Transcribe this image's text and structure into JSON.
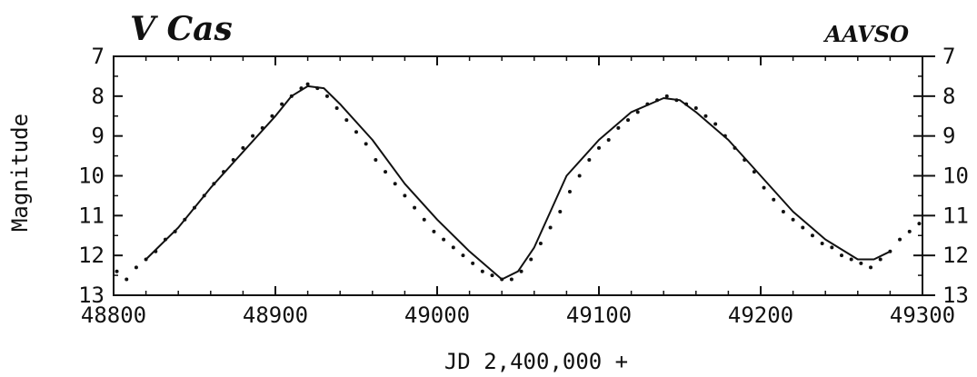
{
  "chart_data": {
    "type": "scatter",
    "title": "V Cas",
    "source_label": "AAVSO",
    "xlabel": "JD 2,400,000 +",
    "ylabel": "Magnitude",
    "xlim": [
      48800,
      49300
    ],
    "ylim": [
      13,
      7
    ],
    "y_inverted": true,
    "grid": false,
    "x_ticks": [
      48800,
      48900,
      49000,
      49100,
      49200,
      49300
    ],
    "y_ticks": [
      7,
      8,
      9,
      10,
      11,
      12,
      13
    ],
    "series": [
      {
        "kind": "points",
        "x": [
          48802,
          48808,
          48814,
          48820,
          48826,
          48832,
          48838,
          48844,
          48850,
          48856,
          48862,
          48868,
          48874,
          48880,
          48886,
          48892,
          48898,
          48904,
          48910,
          48916,
          48920,
          48926,
          48932,
          48938,
          48944,
          48950,
          48956,
          48962,
          48968,
          48974,
          48980,
          48986,
          48992,
          48998,
          49004,
          49010,
          49016,
          49022,
          49028,
          49034,
          49040,
          49046,
          49052,
          49058,
          49064,
          49070,
          49076,
          49082,
          49088,
          49094,
          49100,
          49106,
          49112,
          49118,
          49124,
          49130,
          49136,
          49142,
          49148,
          49154,
          49160,
          49166,
          49172,
          49178,
          49184,
          49190,
          49196,
          49202,
          49208,
          49214,
          49220,
          49226,
          49232,
          49238,
          49244,
          49250,
          49256,
          49262,
          49268,
          49274,
          49280,
          49286,
          49292,
          49298
        ],
        "y": [
          12.4,
          12.6,
          12.3,
          12.1,
          11.9,
          11.6,
          11.4,
          11.1,
          10.8,
          10.5,
          10.2,
          9.9,
          9.6,
          9.3,
          9.0,
          8.8,
          8.5,
          8.2,
          8.0,
          7.8,
          7.7,
          7.8,
          8.0,
          8.3,
          8.6,
          8.9,
          9.2,
          9.6,
          9.9,
          10.2,
          10.5,
          10.8,
          11.1,
          11.4,
          11.6,
          11.8,
          12.0,
          12.2,
          12.4,
          12.5,
          12.6,
          12.6,
          12.4,
          12.1,
          11.7,
          11.3,
          10.9,
          10.4,
          10.0,
          9.6,
          9.3,
          9.1,
          8.8,
          8.6,
          8.4,
          8.2,
          8.1,
          8.0,
          8.1,
          8.2,
          8.3,
          8.5,
          8.7,
          9.0,
          9.3,
          9.6,
          9.9,
          10.3,
          10.6,
          10.9,
          11.1,
          11.3,
          11.5,
          11.7,
          11.8,
          12.0,
          12.1,
          12.2,
          12.3,
          12.1,
          11.9,
          11.6,
          11.4,
          11.2
        ]
      },
      {
        "kind": "smoothed_curve",
        "x": [
          48820,
          48840,
          48860,
          48880,
          48900,
          48910,
          48920,
          48930,
          48940,
          48960,
          48980,
          49000,
          49020,
          49040,
          49050,
          49060,
          49070,
          49080,
          49100,
          49120,
          49140,
          49150,
          49160,
          49180,
          49200,
          49220,
          49240,
          49260,
          49270,
          49280
        ],
        "y": [
          12.1,
          11.3,
          10.3,
          9.4,
          8.5,
          8.0,
          7.75,
          7.8,
          8.2,
          9.1,
          10.2,
          11.1,
          11.9,
          12.6,
          12.4,
          11.8,
          10.9,
          10.0,
          9.1,
          8.4,
          8.05,
          8.1,
          8.4,
          9.1,
          10.0,
          10.9,
          11.6,
          12.1,
          12.1,
          11.9
        ]
      }
    ]
  }
}
